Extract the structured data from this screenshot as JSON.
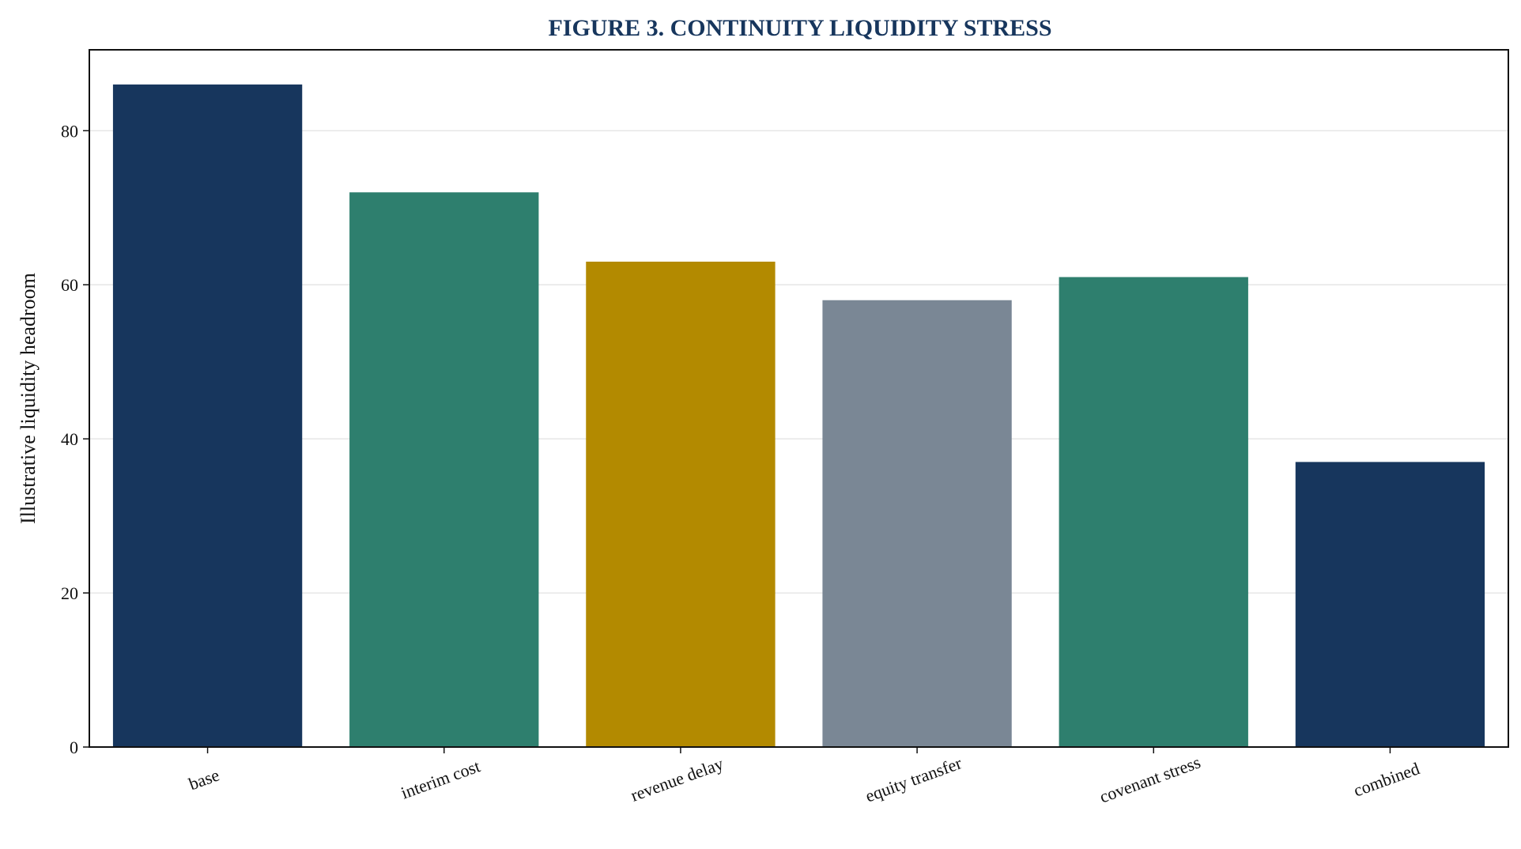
{
  "chart_data": {
    "type": "bar",
    "title": "FIGURE 3. CONTINUITY LIQUIDITY STRESS",
    "xlabel": "",
    "ylabel": "Illustrative liquidity headroom",
    "categories": [
      "base",
      "interim cost",
      "revenue delay",
      "equity transfer",
      "covenant stress",
      "combined"
    ],
    "values": [
      86,
      72,
      63,
      58,
      61,
      37
    ],
    "colors": [
      "#17365d",
      "#2e7f6e",
      "#b38a00",
      "#7a8795",
      "#2e7f6e",
      "#17365d"
    ],
    "ylim": [
      0,
      90.5
    ],
    "yticks": [
      0,
      20,
      40,
      60,
      80
    ],
    "grid": "horizontal",
    "legend": "none"
  }
}
